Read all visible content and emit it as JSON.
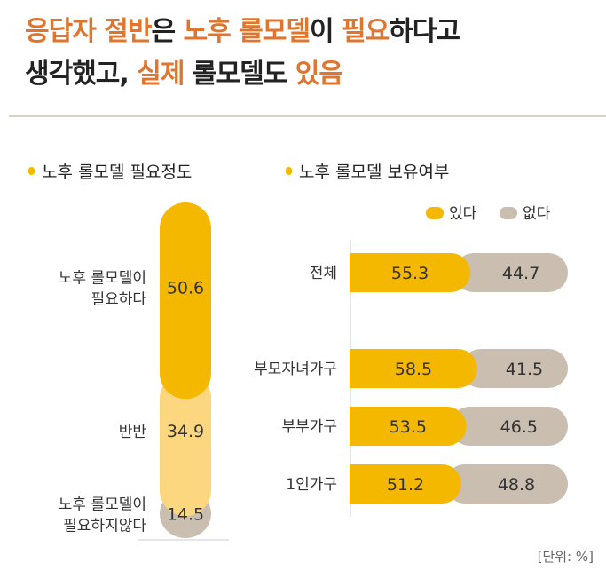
{
  "headline": {
    "line1": [
      {
        "text": "응답자 절반",
        "hl": true
      },
      {
        "text": "은 ",
        "hl": false
      },
      {
        "text": "노후 롤모델",
        "hl": true
      },
      {
        "text": "이 ",
        "hl": false
      },
      {
        "text": "필요",
        "hl": true
      },
      {
        "text": "하다고",
        "hl": false
      }
    ],
    "line2": [
      {
        "text": "생각했고, ",
        "hl": false
      },
      {
        "text": "실제",
        "hl": true
      },
      {
        "text": " 롤모델도 ",
        "hl": false
      },
      {
        "text": "있음",
        "hl": true
      }
    ]
  },
  "colors": {
    "accent_text": "#e0752f",
    "yes": "#f5b800",
    "yes_light": "#fdd77f",
    "no": "#c9beb0"
  },
  "unit_label": "[단위: %]",
  "chart_data": [
    {
      "type": "bar",
      "orientation": "vertical-stacked",
      "title": "노후 롤모델 필요정도",
      "categories": [
        "노후 롤모델이 필요하다",
        "반반",
        "노후 롤모델이 필요하지않다"
      ],
      "label_lines": [
        [
          "노후 롤모델이",
          "필요하다"
        ],
        [
          "반반"
        ],
        [
          "노후 롤모델이",
          "필요하지않다"
        ]
      ],
      "values": [
        50.6,
        34.9,
        14.5
      ],
      "colors": [
        "#f5b800",
        "#fdd77f",
        "#c9beb0"
      ]
    },
    {
      "type": "bar",
      "orientation": "horizontal-stacked",
      "title": "노후 롤모델 보유여부",
      "legend": {
        "position": "top-right"
      },
      "categories": [
        "전체",
        "부모자녀가구",
        "부부가구",
        "1인가구"
      ],
      "series": [
        {
          "name": "있다",
          "color": "#f5b800",
          "values": [
            55.3,
            58.5,
            53.5,
            51.2
          ]
        },
        {
          "name": "없다",
          "color": "#c9beb0",
          "values": [
            44.7,
            41.5,
            46.5,
            48.8
          ]
        }
      ]
    }
  ]
}
